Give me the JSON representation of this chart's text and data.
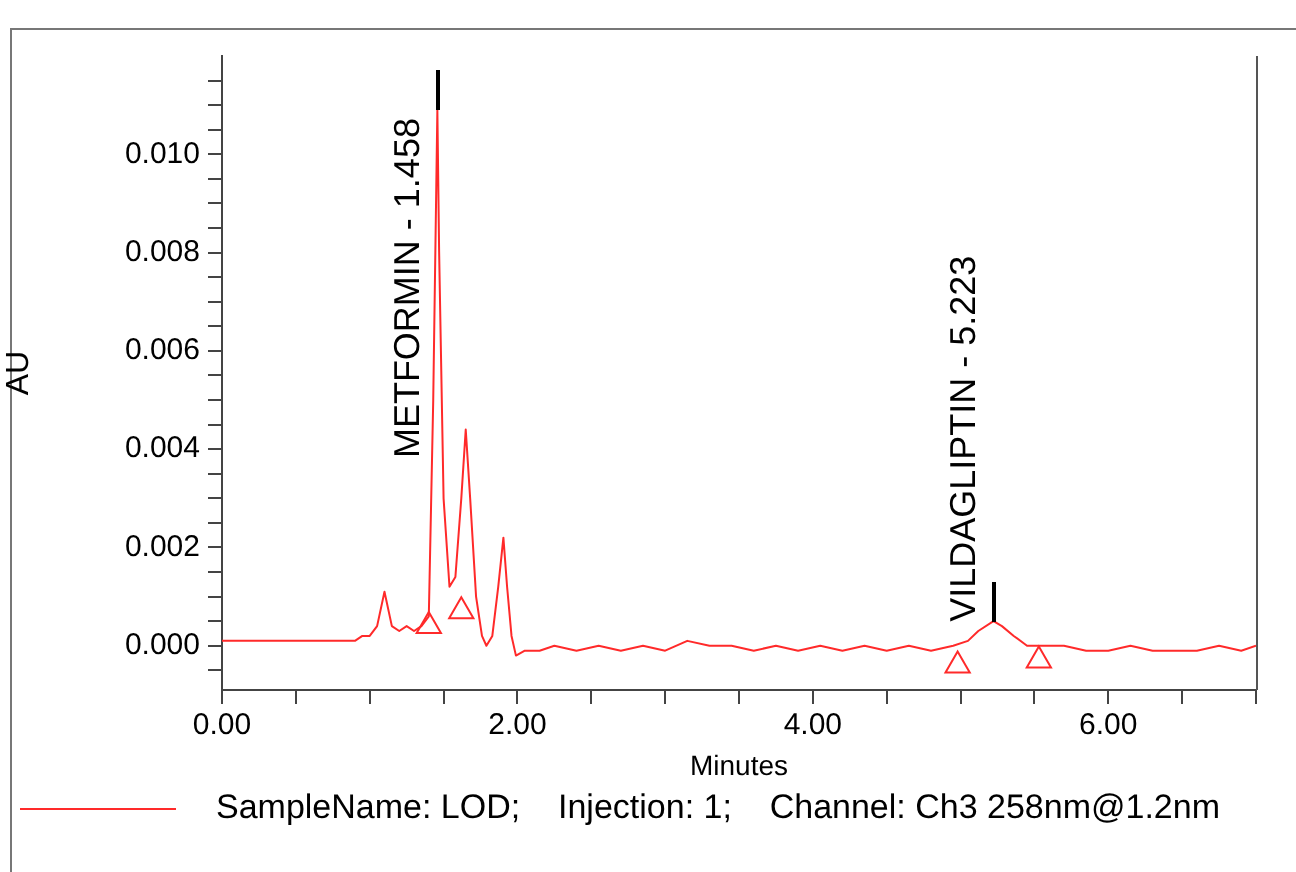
{
  "chart_data": {
    "type": "line",
    "xlabel": "Minutes",
    "ylabel": "AU",
    "legend": "bottom",
    "grid": false,
    "marker": "none",
    "line_style": "solid",
    "xlim": [
      0,
      7
    ],
    "ylim": [
      -0.0009,
      0.012
    ],
    "xticks": [
      {
        "value": 0,
        "label": "0.00"
      },
      {
        "value": 0.5,
        "label": null
      },
      {
        "value": 1,
        "label": null
      },
      {
        "value": 1.5,
        "label": null
      },
      {
        "value": 2,
        "label": "2.00"
      },
      {
        "value": 2.5,
        "label": null
      },
      {
        "value": 3,
        "label": null
      },
      {
        "value": 3.5,
        "label": null
      },
      {
        "value": 4,
        "label": "4.00"
      },
      {
        "value": 4.5,
        "label": null
      },
      {
        "value": 5,
        "label": null
      },
      {
        "value": 5.5,
        "label": null
      },
      {
        "value": 6,
        "label": "6.00"
      },
      {
        "value": 6.5,
        "label": null
      },
      {
        "value": 7,
        "label": null
      }
    ],
    "yticks": [
      {
        "value": -0.0005,
        "label": null
      },
      {
        "value": 0,
        "label": "0.000"
      },
      {
        "value": 0.0005,
        "label": null
      },
      {
        "value": 0.001,
        "label": null
      },
      {
        "value": 0.0015,
        "label": null
      },
      {
        "value": 0.002,
        "label": "0.002"
      },
      {
        "value": 0.0025,
        "label": null
      },
      {
        "value": 0.003,
        "label": null
      },
      {
        "value": 0.0035,
        "label": null
      },
      {
        "value": 0.004,
        "label": "0.004"
      },
      {
        "value": 0.0045,
        "label": null
      },
      {
        "value": 0.005,
        "label": null
      },
      {
        "value": 0.0055,
        "label": null
      },
      {
        "value": 0.006,
        "label": "0.006"
      },
      {
        "value": 0.0065,
        "label": null
      },
      {
        "value": 0.007,
        "label": null
      },
      {
        "value": 0.0075,
        "label": null
      },
      {
        "value": 0.008,
        "label": "0.008"
      },
      {
        "value": 0.0085,
        "label": null
      },
      {
        "value": 0.009,
        "label": null
      },
      {
        "value": 0.0095,
        "label": null
      },
      {
        "value": 0.01,
        "label": "0.010"
      },
      {
        "value": 0.0105,
        "label": null
      },
      {
        "value": 0.011,
        "label": null
      },
      {
        "value": 0.0115,
        "label": null
      }
    ],
    "annotations": [
      {
        "text": "METFORMIN - 1.458",
        "x": 1.458,
        "y": 0.0109
      },
      {
        "text": "VILDAGLIPTIN - 5.223",
        "x": 5.223,
        "y": 0.0005
      }
    ],
    "series": [
      {
        "name": "SampleName: LOD;    Injection: 1;    Channel: Ch3 258nm@1.2nm",
        "color": "#ff2a2a",
        "x": [
          0,
          0.1,
          0.2,
          0.3,
          0.4,
          0.5,
          0.6,
          0.7,
          0.8,
          0.9,
          0.95,
          1,
          1.05,
          1.1,
          1.15,
          1.2,
          1.25,
          1.3,
          1.35,
          1.4,
          1.43,
          1.458,
          1.47,
          1.5,
          1.54,
          1.58,
          1.62,
          1.65,
          1.68,
          1.72,
          1.76,
          1.79,
          1.83,
          1.87,
          1.905,
          1.93,
          1.96,
          1.99,
          2.05,
          2.15,
          2.25,
          2.4,
          2.55,
          2.7,
          2.85,
          3,
          3.15,
          3.3,
          3.45,
          3.6,
          3.75,
          3.9,
          4.05,
          4.2,
          4.35,
          4.5,
          4.65,
          4.8,
          4.95,
          5.05,
          5.12,
          5.223,
          5.28,
          5.36,
          5.45,
          5.55,
          5.7,
          5.85,
          6,
          6.15,
          6.3,
          6.45,
          6.6,
          6.75,
          6.9,
          7
        ],
        "values": [
          0.0001,
          0.0001,
          0.0001,
          0.0001,
          0.0001,
          0.0001,
          0.0001,
          0.0001,
          0.0001,
          0.0001,
          0.0002,
          0.0002,
          0.0004,
          0.0011,
          0.0004,
          0.0003,
          0.0004,
          0.0003,
          0.0004,
          0.0006,
          0.005,
          0.0109,
          0.008,
          0.003,
          0.0012,
          0.0014,
          0.003,
          0.0044,
          0.003,
          0.001,
          0.0002,
          0,
          0.0002,
          0.0012,
          0.0022,
          0.0012,
          0.0002,
          -0.0002,
          -0.0001,
          -0.0001,
          0,
          -0.0001,
          0,
          -0.0001,
          0,
          -0.0001,
          0.0001,
          0,
          0,
          -0.0001,
          0,
          -0.0001,
          0,
          -0.0001,
          0,
          -0.0001,
          0,
          -0.0001,
          0,
          0.0001,
          0.0003,
          0.0005,
          0.0004,
          0.0002,
          0,
          0,
          0,
          -0.0001,
          -0.0001,
          0,
          -0.0001,
          -0.0001,
          -0.0001,
          0,
          -0.0001,
          0
        ]
      },
      {
        "type": "scatter",
        "marker": "triangle",
        "color": "#ff2a2a",
        "x": [
          1.4,
          1.62,
          4.98,
          5.53
        ],
        "values": [
          0.0004,
          0.0007,
          -0.0004,
          -0.0003
        ]
      }
    ]
  }
}
